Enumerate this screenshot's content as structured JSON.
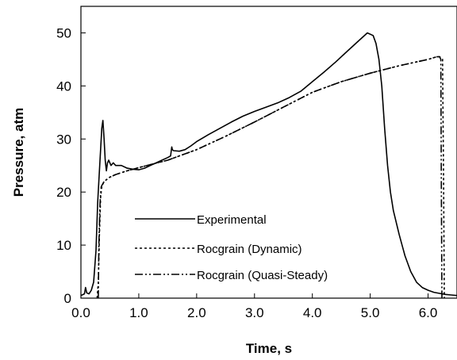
{
  "chart_data": {
    "type": "line",
    "title": "",
    "xlabel": "Time, s",
    "ylabel": "Pressure, atm",
    "xlim": [
      0,
      6.5
    ],
    "ylim": [
      0,
      55
    ],
    "x_ticks": [
      0.0,
      1.0,
      2.0,
      3.0,
      4.0,
      5.0,
      6.0
    ],
    "x_tick_labels": [
      "0.0",
      "1.0",
      "2.0",
      "3.0",
      "4.0",
      "5.0",
      "6.0"
    ],
    "y_ticks": [
      0,
      10,
      20,
      30,
      40,
      50
    ],
    "y_tick_labels": [
      "0",
      "10",
      "20",
      "30",
      "40",
      "50"
    ],
    "grid": false,
    "legend_position": "lower-center",
    "series": [
      {
        "name": "Experimental",
        "style": "solid",
        "color": "#000000",
        "points": [
          [
            0.0,
            0.5
          ],
          [
            0.06,
            0.8
          ],
          [
            0.08,
            2.0
          ],
          [
            0.1,
            1.0
          ],
          [
            0.14,
            0.8
          ],
          [
            0.18,
            1.5
          ],
          [
            0.22,
            3.0
          ],
          [
            0.26,
            9.0
          ],
          [
            0.29,
            18.0
          ],
          [
            0.32,
            24.0
          ],
          [
            0.34,
            28.0
          ],
          [
            0.36,
            32.0
          ],
          [
            0.38,
            33.5
          ],
          [
            0.4,
            30.0
          ],
          [
            0.42,
            26.0
          ],
          [
            0.44,
            24.0
          ],
          [
            0.46,
            25.5
          ],
          [
            0.48,
            26.0
          ],
          [
            0.52,
            25.0
          ],
          [
            0.56,
            25.5
          ],
          [
            0.6,
            25.0
          ],
          [
            0.7,
            25.0
          ],
          [
            0.8,
            24.5
          ],
          [
            0.9,
            24.3
          ],
          [
            1.0,
            24.2
          ],
          [
            1.1,
            24.5
          ],
          [
            1.2,
            25.0
          ],
          [
            1.3,
            25.5
          ],
          [
            1.4,
            26.0
          ],
          [
            1.5,
            26.5
          ],
          [
            1.55,
            26.8
          ],
          [
            1.57,
            28.5
          ],
          [
            1.58,
            28.0
          ],
          [
            1.6,
            27.8
          ],
          [
            1.7,
            27.7
          ],
          [
            1.8,
            28.0
          ],
          [
            1.9,
            28.7
          ],
          [
            2.0,
            29.5
          ],
          [
            2.2,
            30.8
          ],
          [
            2.4,
            32.0
          ],
          [
            2.6,
            33.2
          ],
          [
            2.8,
            34.3
          ],
          [
            3.0,
            35.2
          ],
          [
            3.2,
            36.0
          ],
          [
            3.4,
            36.8
          ],
          [
            3.6,
            37.8
          ],
          [
            3.8,
            39.0
          ],
          [
            4.0,
            40.8
          ],
          [
            4.2,
            42.6
          ],
          [
            4.4,
            44.5
          ],
          [
            4.6,
            46.5
          ],
          [
            4.8,
            48.5
          ],
          [
            4.95,
            50.0
          ],
          [
            5.05,
            49.5
          ],
          [
            5.1,
            48.0
          ],
          [
            5.15,
            45.0
          ],
          [
            5.2,
            40.0
          ],
          [
            5.25,
            32.0
          ],
          [
            5.3,
            25.0
          ],
          [
            5.35,
            20.0
          ],
          [
            5.4,
            16.5
          ],
          [
            5.5,
            12.0
          ],
          [
            5.6,
            8.0
          ],
          [
            5.7,
            5.0
          ],
          [
            5.8,
            3.0
          ],
          [
            5.9,
            2.0
          ],
          [
            6.0,
            1.5
          ],
          [
            6.1,
            1.1
          ],
          [
            6.2,
            0.9
          ],
          [
            6.3,
            0.7
          ],
          [
            6.4,
            0.6
          ],
          [
            6.5,
            0.5
          ]
        ]
      },
      {
        "name": "Rocgrain (Dynamic)",
        "style": "dotted",
        "color": "#000000",
        "points": [
          [
            0.28,
            0.0
          ],
          [
            0.3,
            3.0
          ],
          [
            0.32,
            12.0
          ],
          [
            0.34,
            19.0
          ],
          [
            0.36,
            21.0
          ],
          [
            0.4,
            22.0
          ],
          [
            0.5,
            22.8
          ],
          [
            0.6,
            23.3
          ],
          [
            0.8,
            24.0
          ],
          [
            1.0,
            24.6
          ],
          [
            1.5,
            26.0
          ],
          [
            2.0,
            28.0
          ],
          [
            2.5,
            30.5
          ],
          [
            3.0,
            33.2
          ],
          [
            3.5,
            36.0
          ],
          [
            4.0,
            38.8
          ],
          [
            4.5,
            40.8
          ],
          [
            5.0,
            42.4
          ],
          [
            5.5,
            43.8
          ],
          [
            6.0,
            45.0
          ],
          [
            6.15,
            45.5
          ],
          [
            6.2,
            45.5
          ],
          [
            6.25,
            45.0
          ],
          [
            6.27,
            20.0
          ],
          [
            6.28,
            0.0
          ]
        ]
      },
      {
        "name": "Rocgrain (Quasi-Steady)",
        "style": "dash-dot",
        "color": "#000000",
        "points": [
          [
            0.3,
            0.0
          ],
          [
            0.31,
            10.0
          ],
          [
            0.33,
            18.0
          ],
          [
            0.35,
            21.0
          ],
          [
            0.4,
            22.0
          ],
          [
            0.5,
            22.8
          ],
          [
            0.6,
            23.3
          ],
          [
            0.8,
            24.0
          ],
          [
            1.0,
            24.6
          ],
          [
            1.5,
            26.0
          ],
          [
            2.0,
            28.0
          ],
          [
            2.5,
            30.5
          ],
          [
            3.0,
            33.2
          ],
          [
            3.5,
            36.0
          ],
          [
            4.0,
            38.8
          ],
          [
            4.5,
            40.8
          ],
          [
            5.0,
            42.4
          ],
          [
            5.5,
            43.8
          ],
          [
            6.0,
            45.0
          ],
          [
            6.15,
            45.5
          ],
          [
            6.2,
            45.5
          ],
          [
            6.22,
            45.0
          ],
          [
            6.23,
            20.0
          ],
          [
            6.24,
            0.0
          ]
        ]
      }
    ]
  }
}
